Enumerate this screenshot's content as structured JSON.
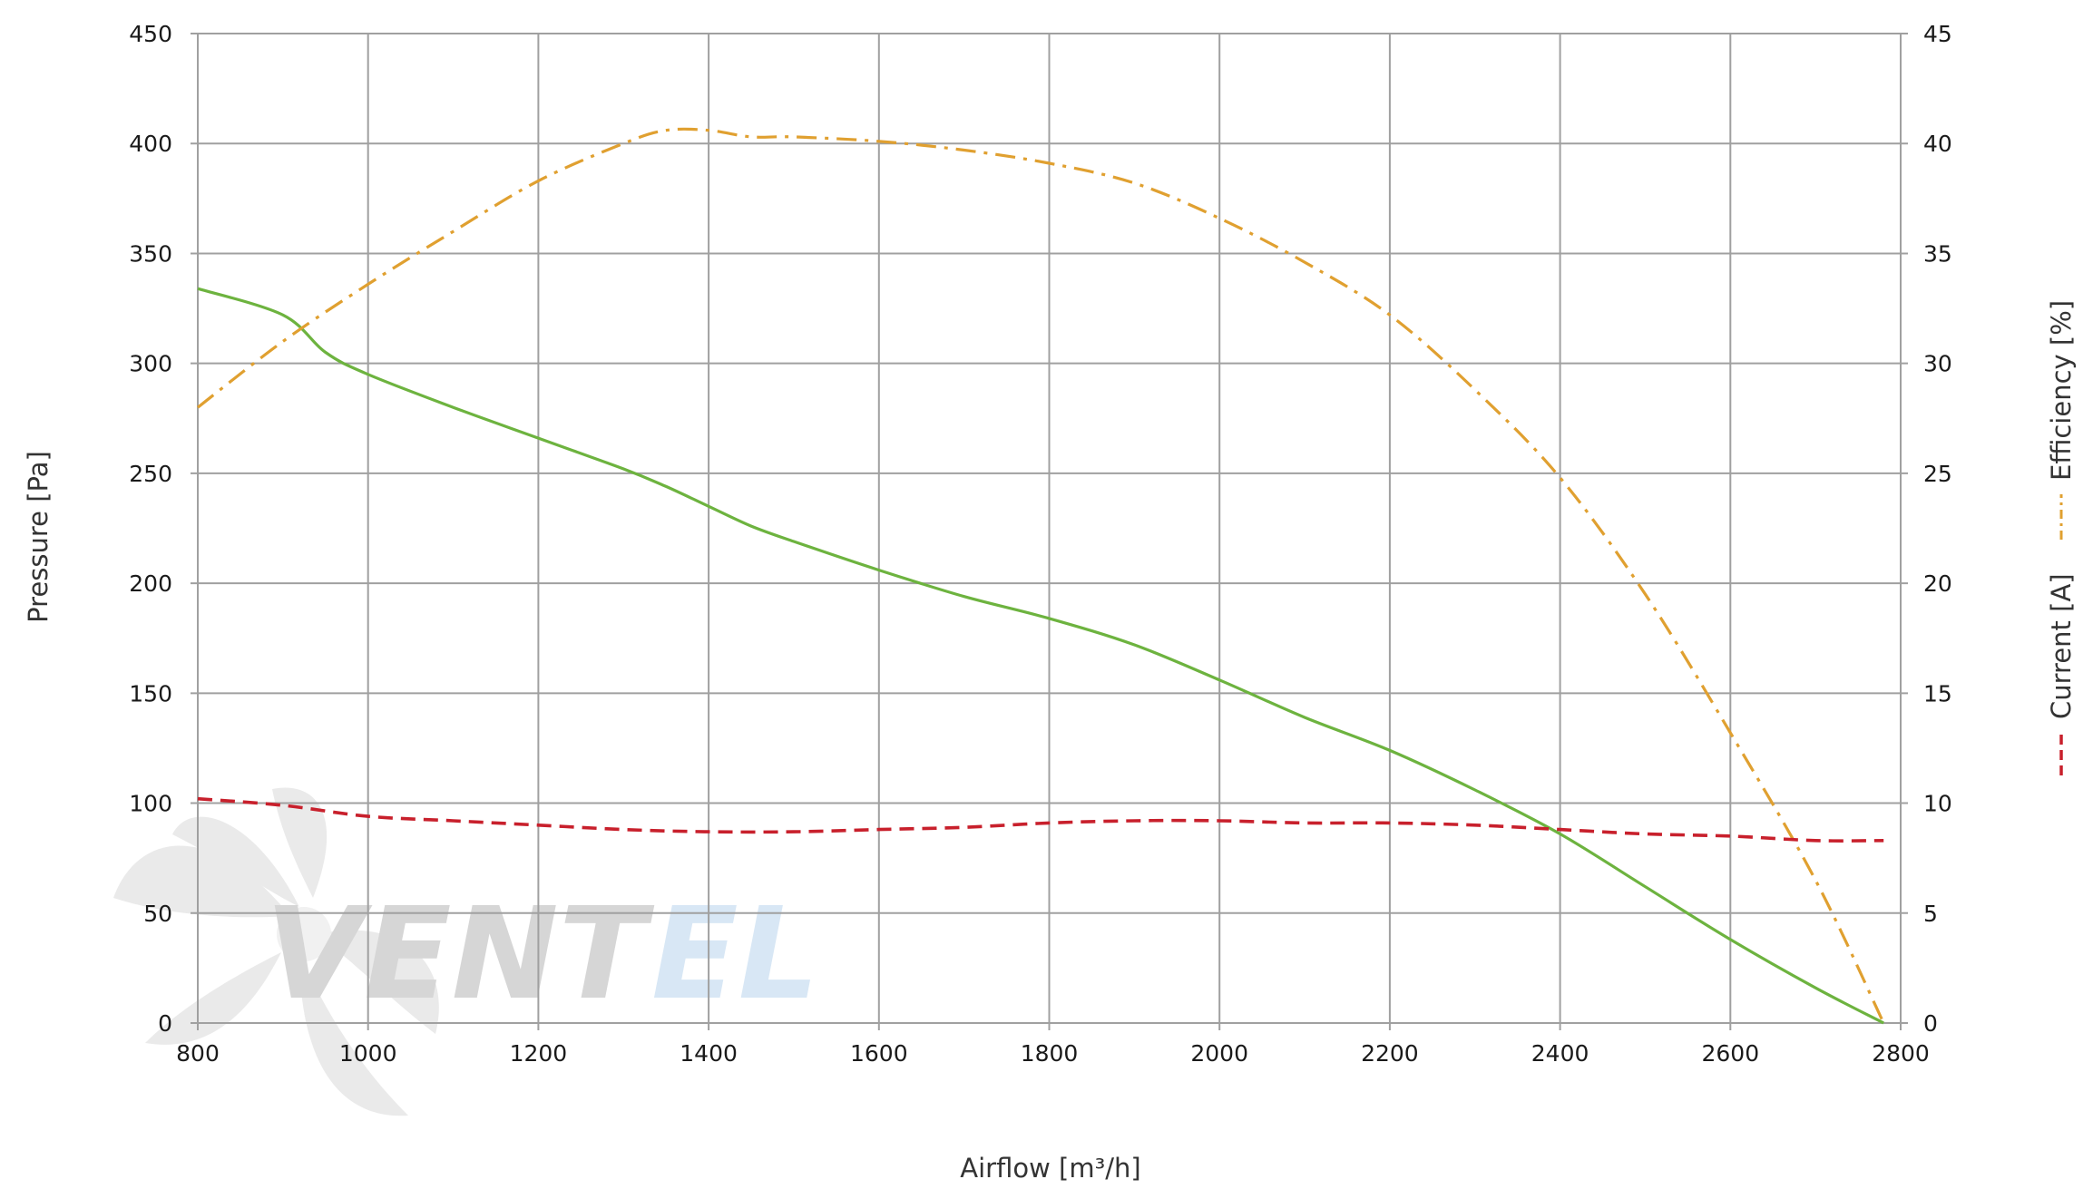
{
  "chart_data": {
    "type": "line",
    "title": "",
    "xlabel": "Airflow [m³/h]",
    "ylabel_left": "Pressure [Pa]",
    "ylabel_right": [
      "Efficiency [%]",
      "Current [A]"
    ],
    "xlim": [
      800,
      2800
    ],
    "ylim_left": [
      0,
      450
    ],
    "ylim_right": [
      0,
      45
    ],
    "x_ticks": [
      800,
      1000,
      1200,
      1400,
      1600,
      1800,
      2000,
      2200,
      2400,
      2600,
      2800
    ],
    "y_ticks_left": [
      0,
      50,
      100,
      150,
      200,
      250,
      300,
      350,
      400,
      450
    ],
    "y_ticks_right": [
      0,
      5,
      10,
      15,
      20,
      25,
      30,
      35,
      40,
      45
    ],
    "grid": true,
    "legend_placement": "right, vertical alongside axis titles",
    "series": [
      {
        "id": "pressure",
        "axis": "left",
        "color": "#6db33f",
        "style": "solid",
        "x": [
          800,
          900,
          950,
          1000,
          1100,
          1200,
          1300,
          1350,
          1400,
          1450,
          1500,
          1600,
          1700,
          1800,
          1900,
          2000,
          2100,
          2200,
          2300,
          2400,
          2500,
          2600,
          2700,
          2780
        ],
        "y": [
          334,
          322,
          305,
          295,
          280,
          266,
          252,
          244,
          235,
          226,
          219,
          206,
          194,
          184,
          172,
          156,
          139,
          124,
          106,
          86,
          62,
          38,
          16,
          0
        ]
      },
      {
        "id": "efficiency",
        "axis": "right",
        "color": "#e0a030",
        "style": "dashdot",
        "x": [
          800,
          900,
          1000,
          1100,
          1200,
          1300,
          1350,
          1400,
          1450,
          1500,
          1600,
          1700,
          1800,
          1900,
          2000,
          2100,
          2200,
          2300,
          2400,
          2500,
          2600,
          2700,
          2780
        ],
        "y": [
          28,
          31,
          33.6,
          36,
          38.3,
          40,
          40.6,
          40.6,
          40.3,
          40.3,
          40.1,
          39.7,
          39.1,
          38.2,
          36.6,
          34.6,
          32.2,
          28.8,
          24.8,
          19.5,
          13.2,
          6.5,
          0
        ]
      },
      {
        "id": "current",
        "axis": "right",
        "color": "#c8202c",
        "style": "dashed",
        "x": [
          800,
          900,
          1000,
          1100,
          1200,
          1300,
          1400,
          1500,
          1600,
          1700,
          1800,
          1900,
          2000,
          2100,
          2200,
          2300,
          2400,
          2500,
          2600,
          2700,
          2780
        ],
        "y": [
          10.2,
          9.9,
          9.4,
          9.2,
          9.0,
          8.8,
          8.7,
          8.7,
          8.8,
          8.9,
          9.1,
          9.2,
          9.2,
          9.1,
          9.1,
          9.0,
          8.8,
          8.6,
          8.5,
          8.3,
          8.3
        ]
      }
    ]
  },
  "watermark": {
    "text_dark": "VENT",
    "text_light": "EL",
    "color_dark": "#d4d4d4",
    "color_light": "#d6e6f4"
  },
  "colors": {
    "grid": "#a0a0a0",
    "axis": "#a0a0a0"
  }
}
